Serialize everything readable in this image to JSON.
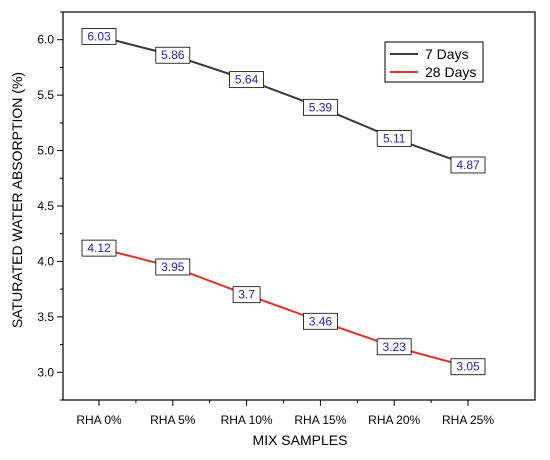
{
  "chart_data": {
    "type": "line",
    "title": "",
    "xlabel": "MIX SAMPLES",
    "ylabel": "SATURATED WATER ABSORPTION (%)",
    "categories": [
      "RHA 0%",
      "RHA 5%",
      "RHA 10%",
      "RHA 15%",
      "RHA 20%",
      "RHA 25%"
    ],
    "ylim": [
      2.75,
      6.25
    ],
    "yticks": [
      "3.0",
      "3.5",
      "4.0",
      "4.5",
      "5.0",
      "5.5",
      "6.0"
    ],
    "grid": false,
    "legend_position": "top-right",
    "series": [
      {
        "name": "7 Days",
        "color": "#3a3a3a",
        "values": [
          6.03,
          5.86,
          5.64,
          5.39,
          5.11,
          4.87
        ],
        "labels": [
          "6.03",
          "5.86",
          "5.64",
          "5.39",
          "5.11",
          "4.87"
        ]
      },
      {
        "name": "28 Days",
        "color": "#e0302a",
        "values": [
          4.12,
          3.95,
          3.7,
          3.46,
          3.23,
          3.05
        ],
        "labels": [
          "4.12",
          "3.95",
          "3.7",
          "3.46",
          "3.23",
          "3.05"
        ]
      }
    ],
    "data_label_color": "#1f1fbf"
  }
}
